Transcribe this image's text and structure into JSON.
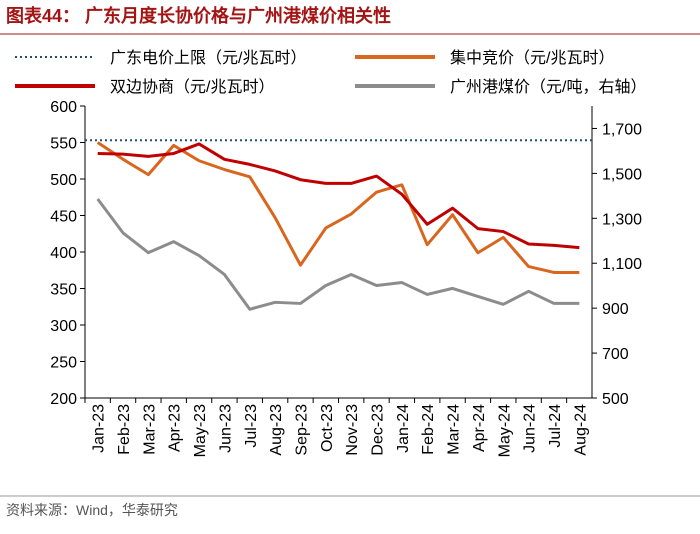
{
  "header": {
    "title": "图表44：  广东月度长协价格与广州港煤价相关性"
  },
  "footer": {
    "source": "资料来源：Wind，华泰研究"
  },
  "chart_data": {
    "type": "line",
    "categories": [
      "Jan-23",
      "Feb-23",
      "Mar-23",
      "Apr-23",
      "May-23",
      "Jun-23",
      "Jul-23",
      "Aug-23",
      "Sep-23",
      "Oct-23",
      "Nov-23",
      "Dec-23",
      "Jan-24",
      "Feb-24",
      "Mar-24",
      "Apr-24",
      "May-24",
      "Jun-24",
      "Jul-24",
      "Aug-24"
    ],
    "reference_line": {
      "name": "广东电价上限（元/兆瓦时）",
      "color": "#1f4e79",
      "value": 553
    },
    "series": [
      {
        "name": "集中竞价（元/兆瓦时）",
        "color": "#d9661f",
        "values": [
          550,
          527,
          506,
          546,
          525,
          513,
          503,
          447,
          382,
          433,
          452,
          482,
          492,
          410,
          451,
          399,
          420,
          380,
          372,
          372
        ]
      },
      {
        "name": "双边协商（元/兆瓦时）",
        "color": "#c00000",
        "values": [
          535,
          534,
          531,
          535,
          548,
          527,
          520,
          511,
          499,
          494,
          494,
          504,
          479,
          438,
          460,
          432,
          428,
          411,
          409,
          406
        ]
      },
      {
        "name": "广州港煤价（元/吨，右轴）",
        "color": "#8c8c8c",
        "axis": "y2",
        "values": [
          1386,
          1235,
          1147,
          1196,
          1134,
          1050,
          895,
          926,
          921,
          1001,
          1050,
          1001,
          1014,
          961,
          988,
          952,
          917,
          975,
          921,
          921
        ]
      }
    ],
    "ylim": [
      200,
      600
    ],
    "yticks": [
      200,
      250,
      300,
      350,
      400,
      450,
      500,
      550,
      600
    ],
    "y2lim": [
      500,
      1800
    ],
    "y2ticks": [
      500,
      700,
      900,
      {
        "value": 1100,
        "label": "1,100"
      },
      {
        "value": 1300,
        "label": "1,300"
      },
      {
        "value": 1500,
        "label": "1,500"
      },
      {
        "value": 1700,
        "label": "1,700"
      }
    ]
  }
}
